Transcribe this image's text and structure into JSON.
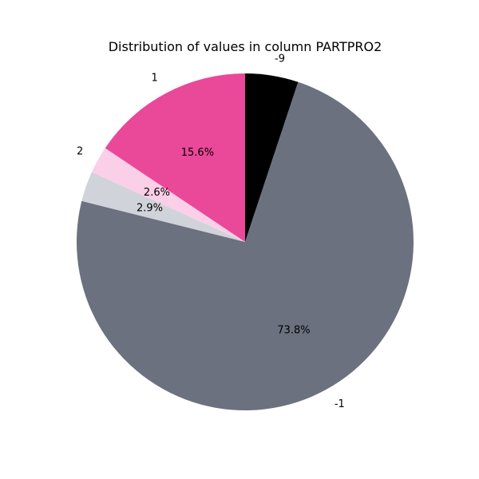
{
  "chart_data": {
    "type": "pie",
    "title": "Distribution of values in column PARTPRO2",
    "slices": [
      {
        "label": "-9",
        "value": 5.1,
        "pct_label": "",
        "color": "#000000"
      },
      {
        "label": "-1",
        "value": 73.8,
        "pct_label": "73.8%",
        "color": "#6b717e"
      },
      {
        "label": "",
        "value": 2.9,
        "pct_label": "2.9%",
        "color": "#d0d3da"
      },
      {
        "label": "2",
        "value": 2.6,
        "pct_label": "2.6%",
        "color": "#fbcfe8"
      },
      {
        "label": "1",
        "value": 15.6,
        "pct_label": "15.6%",
        "color": "#ea4899"
      }
    ],
    "start_angle_deg": 90,
    "direction": "clockwise",
    "legend": "none"
  }
}
